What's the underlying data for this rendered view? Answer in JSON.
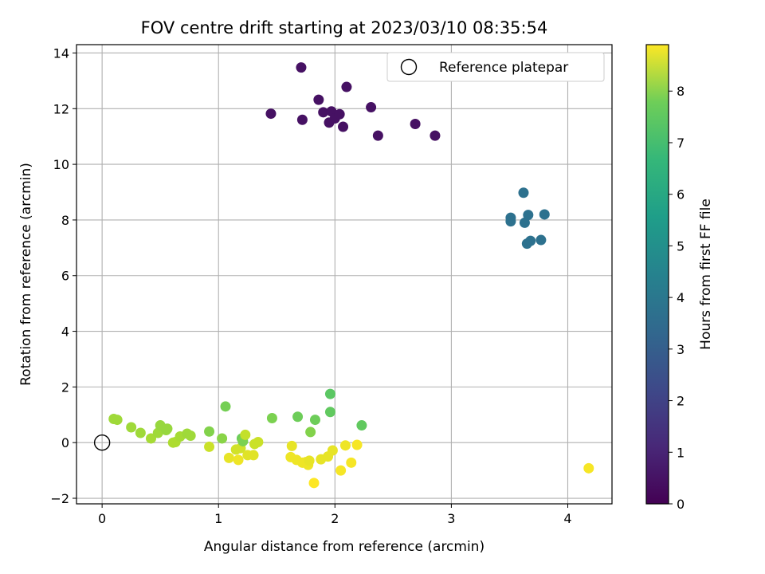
{
  "chart_data": {
    "type": "scatter",
    "title": "FOV centre drift starting at 2023/03/10 08:35:54",
    "xlabel": "Angular distance from reference (arcmin)",
    "ylabel": "Rotation from reference (arcmin)",
    "xlim": [
      -0.22,
      4.38
    ],
    "ylim": [
      -2.2,
      14.3
    ],
    "x_ticks": [
      0,
      1,
      2,
      3,
      4
    ],
    "y_ticks": [
      -2,
      0,
      2,
      4,
      6,
      8,
      10,
      12,
      14
    ],
    "x_tick_labels": [
      "0",
      "1",
      "2",
      "3",
      "4"
    ],
    "y_tick_labels": [
      "−2",
      "0",
      "2",
      "4",
      "6",
      "8",
      "10",
      "12",
      "14"
    ],
    "grid": true,
    "legend": {
      "placement": "top-right",
      "entries": [
        "Reference platepar"
      ]
    },
    "reference_point": {
      "x": 0,
      "y": 0,
      "label": "Reference platepar"
    },
    "colorbar": {
      "label": "Hours from first FF file",
      "colormap": "viridis",
      "range": [
        0,
        8.9
      ],
      "ticks": [
        0,
        1,
        2,
        3,
        4,
        5,
        6,
        7,
        8
      ],
      "tick_labels": [
        "0",
        "1",
        "2",
        "3",
        "4",
        "5",
        "6",
        "7",
        "8"
      ]
    },
    "points": [
      {
        "x": 1.45,
        "y": 11.82,
        "h": 0.4
      },
      {
        "x": 1.71,
        "y": 13.48,
        "h": 0.4
      },
      {
        "x": 1.72,
        "y": 11.6,
        "h": 0.4
      },
      {
        "x": 1.86,
        "y": 12.32,
        "h": 0.4
      },
      {
        "x": 1.9,
        "y": 11.87,
        "h": 0.4
      },
      {
        "x": 1.95,
        "y": 11.5,
        "h": 0.4
      },
      {
        "x": 1.97,
        "y": 11.9,
        "h": 0.4
      },
      {
        "x": 2.0,
        "y": 11.65,
        "h": 0.4
      },
      {
        "x": 2.04,
        "y": 11.8,
        "h": 0.4
      },
      {
        "x": 2.07,
        "y": 11.35,
        "h": 0.4
      },
      {
        "x": 2.1,
        "y": 12.78,
        "h": 0.4
      },
      {
        "x": 2.31,
        "y": 12.05,
        "h": 0.4
      },
      {
        "x": 2.37,
        "y": 11.03,
        "h": 0.4
      },
      {
        "x": 2.69,
        "y": 11.45,
        "h": 0.4
      },
      {
        "x": 2.86,
        "y": 11.03,
        "h": 0.4
      },
      {
        "x": 3.51,
        "y": 8.08,
        "h": 3.3
      },
      {
        "x": 3.51,
        "y": 7.95,
        "h": 3.3
      },
      {
        "x": 3.62,
        "y": 8.98,
        "h": 3.3
      },
      {
        "x": 3.63,
        "y": 7.9,
        "h": 3.3
      },
      {
        "x": 3.66,
        "y": 8.18,
        "h": 3.3
      },
      {
        "x": 3.65,
        "y": 7.15,
        "h": 3.3
      },
      {
        "x": 3.68,
        "y": 7.25,
        "h": 3.3
      },
      {
        "x": 3.77,
        "y": 7.28,
        "h": 3.3
      },
      {
        "x": 3.8,
        "y": 8.2,
        "h": 3.3
      },
      {
        "x": 0.1,
        "y": 0.85,
        "h": 7.6
      },
      {
        "x": 0.13,
        "y": 0.82,
        "h": 7.6
      },
      {
        "x": 0.25,
        "y": 0.55,
        "h": 7.6
      },
      {
        "x": 0.33,
        "y": 0.35,
        "h": 7.6
      },
      {
        "x": 0.42,
        "y": 0.15,
        "h": 7.7
      },
      {
        "x": 0.48,
        "y": 0.35,
        "h": 7.6
      },
      {
        "x": 0.5,
        "y": 0.62,
        "h": 7.5
      },
      {
        "x": 0.55,
        "y": 0.45,
        "h": 7.5
      },
      {
        "x": 0.56,
        "y": 0.5,
        "h": 7.5
      },
      {
        "x": 0.61,
        "y": 0.0,
        "h": 7.8
      },
      {
        "x": 0.63,
        "y": 0.02,
        "h": 7.8
      },
      {
        "x": 0.67,
        "y": 0.22,
        "h": 7.7
      },
      {
        "x": 0.73,
        "y": 0.32,
        "h": 7.6
      },
      {
        "x": 0.76,
        "y": 0.25,
        "h": 7.6
      },
      {
        "x": 0.92,
        "y": 0.4,
        "h": 7.2
      },
      {
        "x": 0.92,
        "y": -0.15,
        "h": 8.2
      },
      {
        "x": 1.03,
        "y": 0.15,
        "h": 7.3
      },
      {
        "x": 1.06,
        "y": 1.3,
        "h": 7.0
      },
      {
        "x": 1.09,
        "y": -0.55,
        "h": 8.6
      },
      {
        "x": 1.15,
        "y": -0.25,
        "h": 8.3
      },
      {
        "x": 1.17,
        "y": -0.62,
        "h": 8.7
      },
      {
        "x": 1.19,
        "y": -0.2,
        "h": 8.3
      },
      {
        "x": 1.2,
        "y": 0.15,
        "h": 6.9
      },
      {
        "x": 1.21,
        "y": 0.05,
        "h": 7.1
      },
      {
        "x": 1.23,
        "y": 0.28,
        "h": 8.1
      },
      {
        "x": 1.25,
        "y": -0.45,
        "h": 8.5
      },
      {
        "x": 1.3,
        "y": -0.45,
        "h": 8.5
      },
      {
        "x": 1.31,
        "y": -0.05,
        "h": 8.2
      },
      {
        "x": 1.34,
        "y": 0.02,
        "h": 8.2
      },
      {
        "x": 1.46,
        "y": 0.88,
        "h": 7.1
      },
      {
        "x": 1.62,
        "y": -0.52,
        "h": 8.7
      },
      {
        "x": 1.63,
        "y": -0.12,
        "h": 8.6
      },
      {
        "x": 1.67,
        "y": -0.62,
        "h": 8.7
      },
      {
        "x": 1.68,
        "y": 0.93,
        "h": 6.9
      },
      {
        "x": 1.72,
        "y": -0.72,
        "h": 8.7
      },
      {
        "x": 1.75,
        "y": -0.7,
        "h": 8.7
      },
      {
        "x": 1.77,
        "y": -0.8,
        "h": 8.7
      },
      {
        "x": 1.78,
        "y": -0.65,
        "h": 8.6
      },
      {
        "x": 1.79,
        "y": 0.38,
        "h": 7.2
      },
      {
        "x": 1.82,
        "y": -1.45,
        "h": 8.9
      },
      {
        "x": 1.83,
        "y": 0.82,
        "h": 6.9
      },
      {
        "x": 1.88,
        "y": -0.6,
        "h": 8.6
      },
      {
        "x": 1.94,
        "y": -0.5,
        "h": 8.6
      },
      {
        "x": 1.96,
        "y": 1.1,
        "h": 6.7
      },
      {
        "x": 1.96,
        "y": 1.75,
        "h": 6.6
      },
      {
        "x": 1.98,
        "y": -0.28,
        "h": 8.6
      },
      {
        "x": 2.05,
        "y": -1.0,
        "h": 8.8
      },
      {
        "x": 2.09,
        "y": -0.1,
        "h": 8.7
      },
      {
        "x": 2.14,
        "y": -0.72,
        "h": 8.8
      },
      {
        "x": 2.19,
        "y": -0.08,
        "h": 8.8
      },
      {
        "x": 2.23,
        "y": 0.62,
        "h": 6.7
      },
      {
        "x": 4.18,
        "y": -0.92,
        "h": 8.8
      }
    ]
  }
}
